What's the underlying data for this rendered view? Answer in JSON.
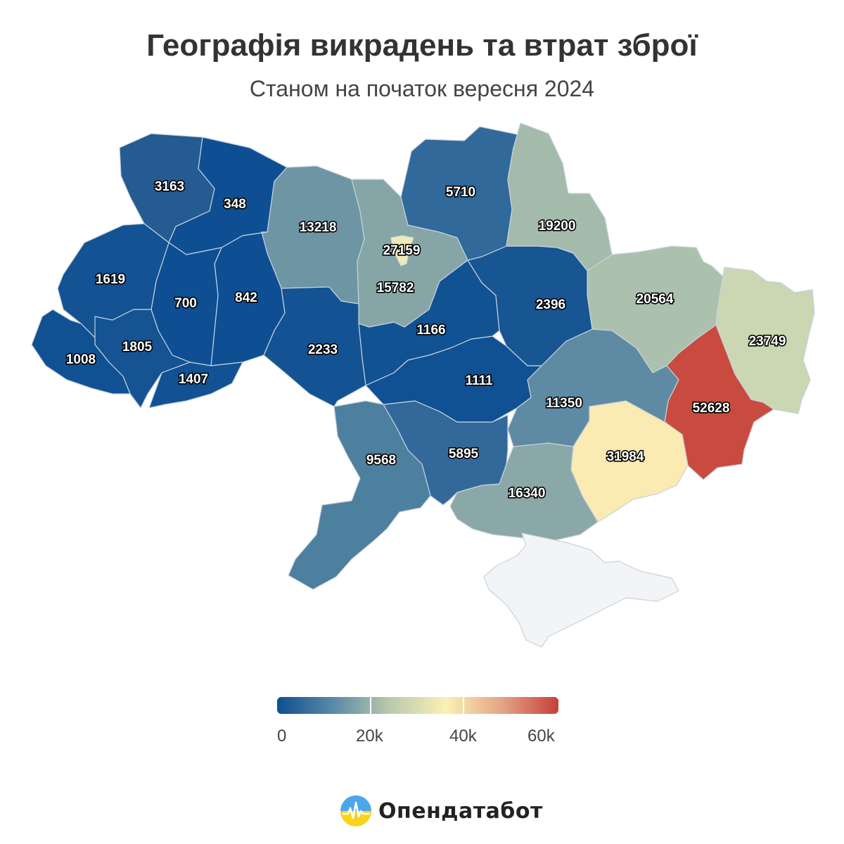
{
  "header": {
    "title": "Географія викрадень та втрат зброї",
    "subtitle": "Станом на початок вересня 2024"
  },
  "map": {
    "type": "choropleth",
    "scale": {
      "min": 0,
      "max": 60000,
      "ticks": [
        "0",
        "20k",
        "40k",
        "60k"
      ],
      "colors": [
        "#0d4f93",
        "#5a8aa6",
        "#b9c9ad",
        "#fbf0b4",
        "#e3a486",
        "#c63f3a"
      ]
    },
    "occupied_fill": "#f3f4f6",
    "regions": [
      {
        "id": "volyn",
        "value": 3163,
        "label": "3163",
        "fill": "#245b92"
      },
      {
        "id": "rivne",
        "value": 348,
        "label": "348",
        "fill": "#0e4f93"
      },
      {
        "id": "zhytomyr",
        "value": 13218,
        "label": "13218",
        "fill": "#6e95a3"
      },
      {
        "id": "kyiv-oblast",
        "value": 15782,
        "label": "15782",
        "fill": "#86a5a6"
      },
      {
        "id": "kyiv-city",
        "value": 27159,
        "label": "27159",
        "fill": "#eeecb6"
      },
      {
        "id": "chernihiv",
        "value": 5710,
        "label": "5710",
        "fill": "#30699a"
      },
      {
        "id": "sumy",
        "value": 19200,
        "label": "19200",
        "fill": "#a4bbac"
      },
      {
        "id": "kharkiv",
        "value": 20564,
        "label": "20564",
        "fill": "#abc1ad"
      },
      {
        "id": "luhansk",
        "value": 23749,
        "label": "23749",
        "fill": "#cad7b2"
      },
      {
        "id": "donetsk",
        "value": 52628,
        "label": "52628",
        "fill": "#c94b3f"
      },
      {
        "id": "zaporizhzhia",
        "value": 31984,
        "label": "31984",
        "fill": "#fbeab1"
      },
      {
        "id": "dnipro",
        "value": 11350,
        "label": "11350",
        "fill": "#5e8ba3"
      },
      {
        "id": "kherson",
        "value": 16340,
        "label": "16340",
        "fill": "#8aa8a7"
      },
      {
        "id": "mykolaiv",
        "value": 5895,
        "label": "5895",
        "fill": "#33699a"
      },
      {
        "id": "odesa",
        "value": 9568,
        "label": "9568",
        "fill": "#4d7f9f"
      },
      {
        "id": "kirovohrad",
        "value": 1111,
        "label": "1111",
        "fill": "#0f5193"
      },
      {
        "id": "cherkasy",
        "value": 1166,
        "label": "1166",
        "fill": "#115293"
      },
      {
        "id": "poltava",
        "value": 2396,
        "label": "2396",
        "fill": "#175593"
      },
      {
        "id": "vinnytsia",
        "value": 2233,
        "label": "2233",
        "fill": "#145393"
      },
      {
        "id": "khmelnytskyi",
        "value": 842,
        "label": "842",
        "fill": "#0e4f93"
      },
      {
        "id": "ternopil",
        "value": 700,
        "label": "700",
        "fill": "#0e4f93"
      },
      {
        "id": "lviv",
        "value": 1619,
        "label": "1619",
        "fill": "#135293"
      },
      {
        "id": "ivano-frankivsk",
        "value": 1805,
        "label": "1805",
        "fill": "#155393"
      },
      {
        "id": "chernivtsi",
        "value": 1407,
        "label": "1407",
        "fill": "#125193"
      },
      {
        "id": "zakarpattia",
        "value": 1008,
        "label": "1008",
        "fill": "#105193"
      },
      {
        "id": "crimea",
        "value": null,
        "label": "",
        "fill": "#f3f4f6"
      }
    ]
  },
  "brand": {
    "name": "Опендатабот",
    "logo_icon": "opendatabot-logo-icon"
  }
}
